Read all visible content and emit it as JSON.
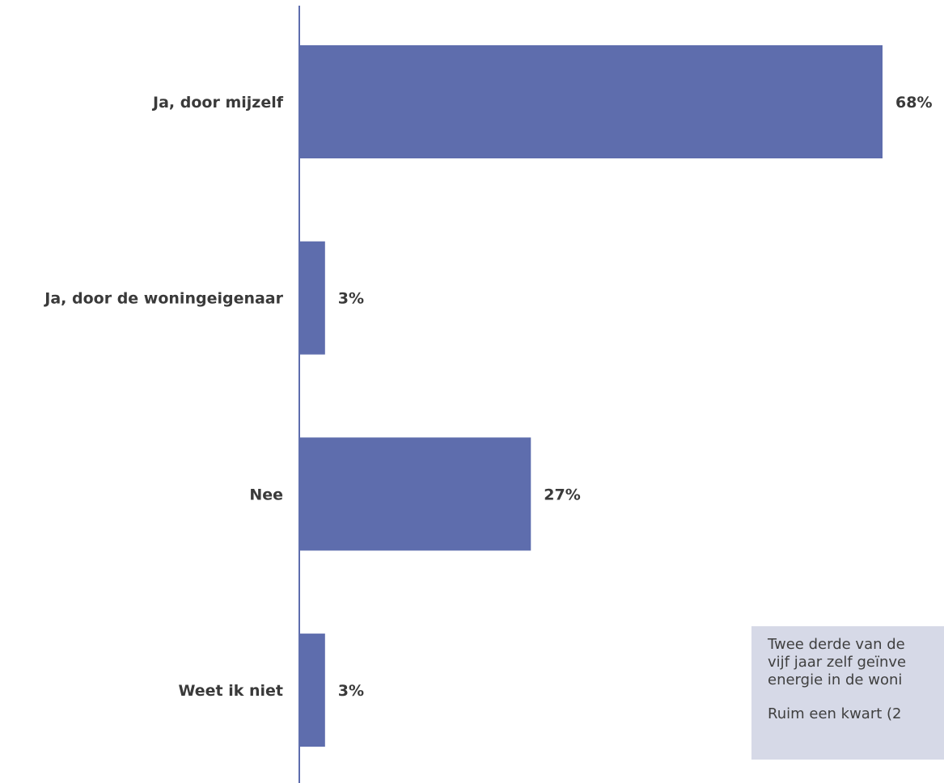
{
  "chart_data": {
    "type": "bar",
    "orientation": "horizontal",
    "categories": [
      "Ja, door mijzelf",
      "Ja, door de woningeigenaar",
      "Nee",
      "Weet ik niet"
    ],
    "values": [
      68,
      3,
      27,
      3
    ],
    "value_labels": [
      "68%",
      "3%",
      "27%",
      "3%"
    ],
    "unit": "%",
    "title": "",
    "xlabel": "",
    "ylabel": "",
    "xlim": [
      0,
      68
    ],
    "grid": false,
    "legend": "none",
    "bar_color": "#5e6dad",
    "axis_color": "#5e6dad"
  },
  "annotation": {
    "lines": [
      "Twee derde van de",
      "vijf jaar zelf geïnve",
      "energie in de woni"
    ],
    "last_line": "Ruim een kwart (2",
    "background_color": "#d6d9e7"
  }
}
